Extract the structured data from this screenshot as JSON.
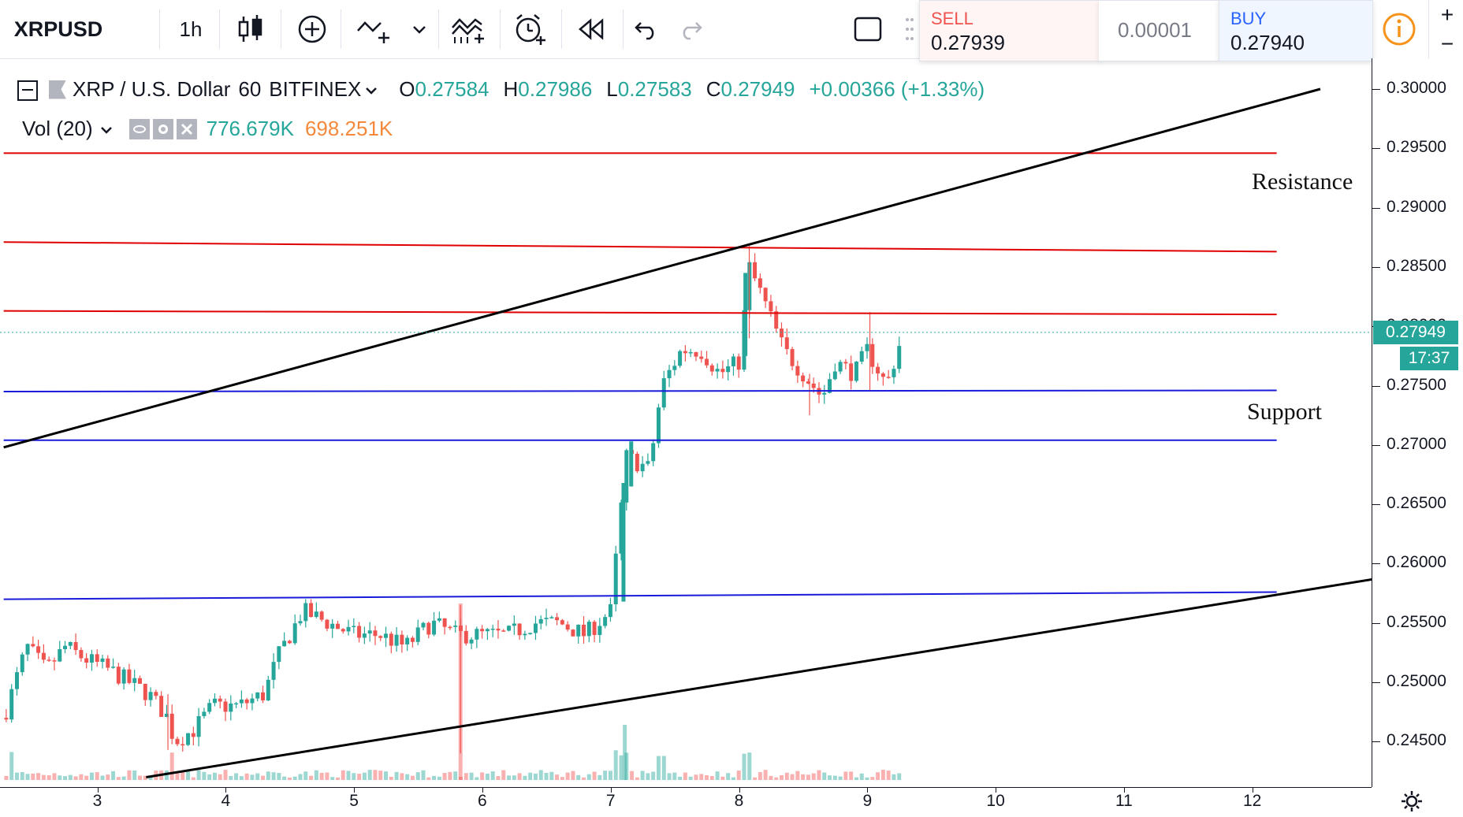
{
  "toolbar": {
    "symbol": "XRPUSD",
    "interval": "1h"
  },
  "trade": {
    "sell_label": "SELL",
    "sell_price": "0.27939",
    "spread": "0.00001",
    "buy_label": "BUY",
    "buy_price": "0.27940"
  },
  "legend": {
    "pair": "XRP / U.S. Dollar",
    "interval": "60",
    "exchange": "BITFINEX",
    "open_label": "O",
    "open": "0.27584",
    "high_label": "H",
    "high": "0.27986",
    "low_label": "L",
    "low": "0.27583",
    "close_label": "C",
    "close": "0.27949",
    "change": "+0.00366 (+1.33%)",
    "vol_label": "Vol (20)",
    "vol_value": "776.679K",
    "vol_ma": "698.251K"
  },
  "colors": {
    "up": "#26a69a",
    "down": "#ef5350",
    "resistance": "#e00000",
    "support": "#1a1adb",
    "trendline": "#000000"
  },
  "price_tag": {
    "price": "0.27949",
    "countdown": "17:37"
  },
  "chart_data": {
    "type": "candlestick",
    "title": "XRP / U.S. Dollar · 60 · BITFINEX",
    "x_axis": {
      "unit": "day",
      "ticks": [
        "3",
        "4",
        "5",
        "6",
        "7",
        "8",
        "9",
        "10",
        "11",
        "12"
      ],
      "range": [
        2.27,
        12.95
      ]
    },
    "y_axis": {
      "ticks": [
        "0.30000",
        "0.29500",
        "0.29000",
        "0.28500",
        "0.28000",
        "0.27500",
        "0.27000",
        "0.26500",
        "0.26000",
        "0.25500",
        "0.25000",
        "0.24500"
      ],
      "range": [
        0.242,
        0.3017
      ]
    },
    "annotations": [
      "Resistance",
      "Support"
    ],
    "horizontal_levels": [
      {
        "role": "resistance",
        "from": [
          2.27,
          0.2946
        ],
        "to": [
          12.19,
          0.2946
        ]
      },
      {
        "role": "resistance",
        "from": [
          2.27,
          0.2871
        ],
        "to": [
          12.19,
          0.2863
        ]
      },
      {
        "role": "resistance",
        "from": [
          2.27,
          0.2813
        ],
        "to": [
          12.19,
          0.281
        ]
      },
      {
        "role": "support",
        "from": [
          2.27,
          0.2745
        ],
        "to": [
          12.19,
          0.2746
        ]
      },
      {
        "role": "support",
        "from": [
          2.27,
          0.2704
        ],
        "to": [
          12.19,
          0.2704
        ]
      },
      {
        "role": "support",
        "from": [
          2.27,
          0.257
        ],
        "to": [
          12.19,
          0.2576
        ]
      }
    ],
    "trendlines": [
      {
        "from": [
          2.27,
          0.2698
        ],
        "to": [
          12.53,
          0.3
        ]
      },
      {
        "from": [
          3.38,
          0.242
        ],
        "to": [
          12.95,
          0.2587
        ]
      }
    ],
    "candle_path": [
      [
        2.27,
        0.247
      ],
      [
        2.45,
        0.253
      ],
      [
        2.6,
        0.251
      ],
      [
        2.75,
        0.253
      ],
      [
        2.9,
        0.252
      ],
      [
        3.1,
        0.251
      ],
      [
        3.25,
        0.25
      ],
      [
        3.4,
        0.249
      ],
      [
        3.55,
        0.247
      ],
      [
        3.6,
        0.245
      ],
      [
        3.75,
        0.246
      ],
      [
        3.9,
        0.248
      ],
      [
        4.1,
        0.248
      ],
      [
        4.3,
        0.249
      ],
      [
        4.4,
        0.252
      ],
      [
        4.6,
        0.256
      ],
      [
        4.8,
        0.255
      ],
      [
        5.0,
        0.254
      ],
      [
        5.2,
        0.254
      ],
      [
        5.4,
        0.253
      ],
      [
        5.6,
        0.255
      ],
      [
        5.8,
        0.254
      ],
      [
        6.0,
        0.254
      ],
      [
        6.2,
        0.254
      ],
      [
        6.4,
        0.255
      ],
      [
        6.6,
        0.255
      ],
      [
        6.8,
        0.254
      ],
      [
        7.0,
        0.256
      ],
      [
        7.12,
        0.269
      ],
      [
        7.3,
        0.268
      ],
      [
        7.4,
        0.275
      ],
      [
        7.55,
        0.278
      ],
      [
        7.7,
        0.278
      ],
      [
        7.85,
        0.276
      ],
      [
        8.0,
        0.277
      ],
      [
        8.08,
        0.285
      ],
      [
        8.2,
        0.282
      ],
      [
        8.35,
        0.278
      ],
      [
        8.5,
        0.276
      ],
      [
        8.65,
        0.274
      ],
      [
        8.75,
        0.277
      ],
      [
        8.9,
        0.276
      ],
      [
        9.0,
        0.278
      ],
      [
        9.15,
        0.275
      ],
      [
        9.28,
        0.2795
      ]
    ],
    "volume": {
      "series": [
        "776.679K",
        "698.251K"
      ]
    }
  }
}
